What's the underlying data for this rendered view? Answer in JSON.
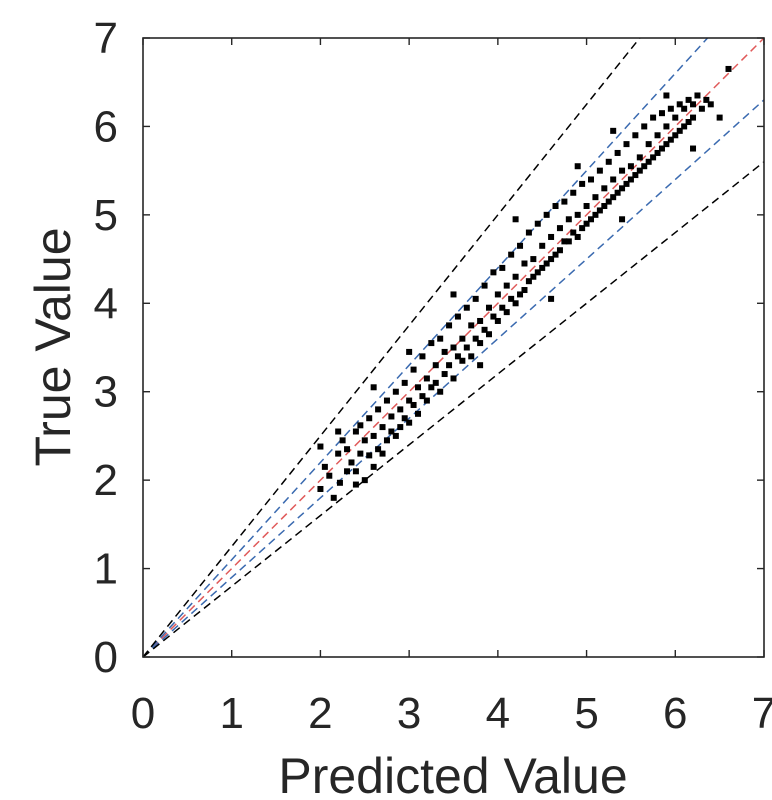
{
  "chart_data": {
    "type": "scatter",
    "title": "",
    "xlabel": "Predicted Value",
    "ylabel": "True Value",
    "xlim": [
      0,
      7
    ],
    "ylim": [
      0,
      7
    ],
    "xticks": [
      "0",
      "1",
      "2",
      "3",
      "4",
      "5",
      "6",
      "7"
    ],
    "yticks": [
      "0",
      "1",
      "2",
      "3",
      "4",
      "5",
      "6",
      "7"
    ],
    "grid": false,
    "legend": "none",
    "marker_color": "#000000",
    "reference_lines": [
      {
        "slope": 1.0,
        "color": "#e05a5a",
        "style": "dashed"
      },
      {
        "slope": 1.1,
        "color": "#3a6ab0",
        "style": "dashed"
      },
      {
        "slope": 0.9,
        "color": "#3a6ab0",
        "style": "dashed"
      },
      {
        "slope": 1.25,
        "color": "#000000",
        "style": "dashed"
      },
      {
        "slope": 0.8,
        "color": "#000000",
        "style": "dashed"
      }
    ],
    "points": [
      [
        2.0,
        2.38
      ],
      [
        2.0,
        1.9
      ],
      [
        2.05,
        2.15
      ],
      [
        2.1,
        2.05
      ],
      [
        2.15,
        1.8
      ],
      [
        2.2,
        2.3
      ],
      [
        2.22,
        1.97
      ],
      [
        2.25,
        2.45
      ],
      [
        2.3,
        2.1
      ],
      [
        2.3,
        2.35
      ],
      [
        2.35,
        2.2
      ],
      [
        2.4,
        2.55
      ],
      [
        2.4,
        2.1
      ],
      [
        2.45,
        2.3
      ],
      [
        2.45,
        2.62
      ],
      [
        2.5,
        2.0
      ],
      [
        2.5,
        2.45
      ],
      [
        2.55,
        2.28
      ],
      [
        2.55,
        2.7
      ],
      [
        2.6,
        2.15
      ],
      [
        2.6,
        2.5
      ],
      [
        2.65,
        2.35
      ],
      [
        2.65,
        2.8
      ],
      [
        2.7,
        2.6
      ],
      [
        2.7,
        2.3
      ],
      [
        2.75,
        2.9
      ],
      [
        2.75,
        2.45
      ],
      [
        2.8,
        2.72
      ],
      [
        2.8,
        2.55
      ],
      [
        2.85,
        3.0
      ],
      [
        2.85,
        2.5
      ],
      [
        2.9,
        2.8
      ],
      [
        2.9,
        2.6
      ],
      [
        2.95,
        3.1
      ],
      [
        2.95,
        2.7
      ],
      [
        3.0,
        2.9
      ],
      [
        3.0,
        2.65
      ],
      [
        3.05,
        3.25
      ],
      [
        3.05,
        2.85
      ],
      [
        3.1,
        3.05
      ],
      [
        3.1,
        2.75
      ],
      [
        3.15,
        3.4
      ],
      [
        3.15,
        2.95
      ],
      [
        3.2,
        3.15
      ],
      [
        3.2,
        2.9
      ],
      [
        3.25,
        3.55
      ],
      [
        3.25,
        3.05
      ],
      [
        3.3,
        3.3
      ],
      [
        3.3,
        3.1
      ],
      [
        3.35,
        3.6
      ],
      [
        3.35,
        3.0
      ],
      [
        3.4,
        3.45
      ],
      [
        3.4,
        3.2
      ],
      [
        3.45,
        3.75
      ],
      [
        3.45,
        3.3
      ],
      [
        3.5,
        3.5
      ],
      [
        3.5,
        3.15
      ],
      [
        3.55,
        3.85
      ],
      [
        3.55,
        3.4
      ],
      [
        3.6,
        3.6
      ],
      [
        3.6,
        3.35
      ],
      [
        3.65,
        3.95
      ],
      [
        3.65,
        3.5
      ],
      [
        3.7,
        3.75
      ],
      [
        3.7,
        3.4
      ],
      [
        3.75,
        4.05
      ],
      [
        3.75,
        3.6
      ],
      [
        3.8,
        3.8
      ],
      [
        3.8,
        3.55
      ],
      [
        3.85,
        4.2
      ],
      [
        3.85,
        3.7
      ],
      [
        3.9,
        3.95
      ],
      [
        3.9,
        3.65
      ],
      [
        3.95,
        4.35
      ],
      [
        3.95,
        3.85
      ],
      [
        4.0,
        4.1
      ],
      [
        4.0,
        3.8
      ],
      [
        4.05,
        4.4
      ],
      [
        4.05,
        3.95
      ],
      [
        4.1,
        4.2
      ],
      [
        4.1,
        3.9
      ],
      [
        4.15,
        4.55
      ],
      [
        4.15,
        4.05
      ],
      [
        4.2,
        4.3
      ],
      [
        4.2,
        4.0
      ],
      [
        4.25,
        4.65
      ],
      [
        4.25,
        4.1
      ],
      [
        4.3,
        4.45
      ],
      [
        4.3,
        4.15
      ],
      [
        4.35,
        4.8
      ],
      [
        4.35,
        4.25
      ],
      [
        4.4,
        4.5
      ],
      [
        4.4,
        4.3
      ],
      [
        4.45,
        4.9
      ],
      [
        4.45,
        4.35
      ],
      [
        4.5,
        4.65
      ],
      [
        4.5,
        4.4
      ],
      [
        4.55,
        5.0
      ],
      [
        4.55,
        4.45
      ],
      [
        4.6,
        4.75
      ],
      [
        4.6,
        4.5
      ],
      [
        4.65,
        5.1
      ],
      [
        4.65,
        4.55
      ],
      [
        4.7,
        4.85
      ],
      [
        4.7,
        4.6
      ],
      [
        4.75,
        5.15
      ],
      [
        4.75,
        4.7
      ],
      [
        4.8,
        4.95
      ],
      [
        4.8,
        4.7
      ],
      [
        4.85,
        5.25
      ],
      [
        4.85,
        4.8
      ],
      [
        4.9,
        5.0
      ],
      [
        4.9,
        4.75
      ],
      [
        4.95,
        5.35
      ],
      [
        4.95,
        4.85
      ],
      [
        5.0,
        5.1
      ],
      [
        5.0,
        4.9
      ],
      [
        5.05,
        5.4
      ],
      [
        5.05,
        4.95
      ],
      [
        5.1,
        5.2
      ],
      [
        5.1,
        5.0
      ],
      [
        5.15,
        5.5
      ],
      [
        5.15,
        5.05
      ],
      [
        5.2,
        5.3
      ],
      [
        5.2,
        5.1
      ],
      [
        5.25,
        5.6
      ],
      [
        5.25,
        5.15
      ],
      [
        5.3,
        5.4
      ],
      [
        5.3,
        5.2
      ],
      [
        5.35,
        5.7
      ],
      [
        5.35,
        5.25
      ],
      [
        5.4,
        5.5
      ],
      [
        5.4,
        5.3
      ],
      [
        5.45,
        5.8
      ],
      [
        5.45,
        5.35
      ],
      [
        5.5,
        5.55
      ],
      [
        5.5,
        5.4
      ],
      [
        5.55,
        5.9
      ],
      [
        5.55,
        5.45
      ],
      [
        5.6,
        5.65
      ],
      [
        5.6,
        5.5
      ],
      [
        5.65,
        6.0
      ],
      [
        5.65,
        5.55
      ],
      [
        5.7,
        5.8
      ],
      [
        5.7,
        5.6
      ],
      [
        5.75,
        6.1
      ],
      [
        5.75,
        5.65
      ],
      [
        5.8,
        5.9
      ],
      [
        5.8,
        5.7
      ],
      [
        5.85,
        6.15
      ],
      [
        5.85,
        5.75
      ],
      [
        5.9,
        6.0
      ],
      [
        5.9,
        5.8
      ],
      [
        5.95,
        6.2
      ],
      [
        5.95,
        5.85
      ],
      [
        6.0,
        6.1
      ],
      [
        6.0,
        5.9
      ],
      [
        6.05,
        6.25
      ],
      [
        6.05,
        5.95
      ],
      [
        6.1,
        6.2
      ],
      [
        6.1,
        6.0
      ],
      [
        6.15,
        6.3
      ],
      [
        6.15,
        6.05
      ],
      [
        6.2,
        6.25
      ],
      [
        6.2,
        6.1
      ],
      [
        6.25,
        6.35
      ],
      [
        6.3,
        6.2
      ],
      [
        6.35,
        6.3
      ],
      [
        6.4,
        6.25
      ],
      [
        6.5,
        6.1
      ],
      [
        6.6,
        6.65
      ],
      [
        5.3,
        5.95
      ],
      [
        4.2,
        4.95
      ],
      [
        3.5,
        4.1
      ],
      [
        2.6,
        3.05
      ],
      [
        4.6,
        4.05
      ],
      [
        5.4,
        4.95
      ],
      [
        6.2,
        5.75
      ],
      [
        3.0,
        3.45
      ],
      [
        2.2,
        2.55
      ],
      [
        4.9,
        5.55
      ],
      [
        3.8,
        3.3
      ],
      [
        5.9,
        6.35
      ],
      [
        2.4,
        1.95
      ]
    ]
  }
}
